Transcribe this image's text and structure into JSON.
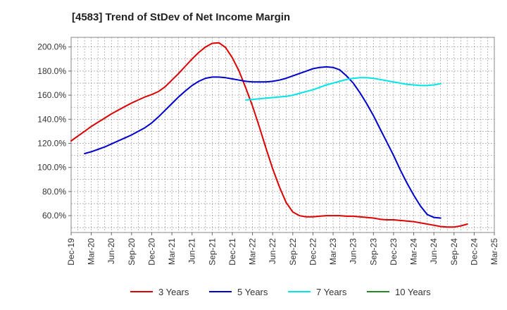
{
  "chart_data": {
    "type": "line",
    "title": "[4583]  Trend of StDev of Net Income Margin",
    "xlabel": "",
    "ylabel": "",
    "y_unit": "%",
    "ylim": [
      46,
      208
    ],
    "y_ticks": [
      60,
      80,
      100,
      120,
      140,
      160,
      180,
      200
    ],
    "y_tick_labels": [
      "60.0%",
      "80.0%",
      "100.0%",
      "120.0%",
      "140.0%",
      "160.0%",
      "180.0%",
      "200.0%"
    ],
    "x_ticks": [
      "Dec-19",
      "Mar-20",
      "Jun-20",
      "Sep-20",
      "Dec-20",
      "Mar-21",
      "Jun-21",
      "Sep-21",
      "Dec-21",
      "Mar-22",
      "Jun-22",
      "Sep-22",
      "Dec-22",
      "Mar-23",
      "Jun-23",
      "Sep-23",
      "Dec-23",
      "Mar-24",
      "Jun-24",
      "Sep-24",
      "Dec-24",
      "Mar-25"
    ],
    "grid": true,
    "legend_position": "bottom",
    "series": [
      {
        "name": "3 Years",
        "color": "#dd0000",
        "points": [
          [
            "Dec-19",
            122
          ],
          [
            "Jan-20",
            126
          ],
          [
            "Feb-20",
            130
          ],
          [
            "Mar-20",
            134
          ],
          [
            "Apr-20",
            137.5
          ],
          [
            "May-20",
            141
          ],
          [
            "Jun-20",
            144.5
          ],
          [
            "Jul-20",
            147.5
          ],
          [
            "Aug-20",
            150.5
          ],
          [
            "Sep-20",
            153.5
          ],
          [
            "Oct-20",
            156
          ],
          [
            "Nov-20",
            158.5
          ],
          [
            "Dec-20",
            160.5
          ],
          [
            "Jan-21",
            163
          ],
          [
            "Feb-21",
            167
          ],
          [
            "Mar-21",
            172.5
          ],
          [
            "Apr-21",
            178
          ],
          [
            "May-21",
            184
          ],
          [
            "Jun-21",
            190
          ],
          [
            "Jul-21",
            195.5
          ],
          [
            "Aug-21",
            200
          ],
          [
            "Sep-21",
            203
          ],
          [
            "Oct-21",
            203.5
          ],
          [
            "Nov-21",
            199.5
          ],
          [
            "Dec-21",
            191
          ],
          [
            "Jan-22",
            180
          ],
          [
            "Feb-22",
            166
          ],
          [
            "Mar-22",
            151
          ],
          [
            "Apr-22",
            134
          ],
          [
            "May-22",
            116
          ],
          [
            "Jun-22",
            99
          ],
          [
            "Jul-22",
            84
          ],
          [
            "Aug-22",
            71
          ],
          [
            "Sep-22",
            63
          ],
          [
            "Oct-22",
            60
          ],
          [
            "Nov-22",
            59
          ],
          [
            "Dec-22",
            59
          ],
          [
            "Jan-23",
            59.5
          ],
          [
            "Feb-23",
            60
          ],
          [
            "Mar-23",
            60
          ],
          [
            "Apr-23",
            60
          ],
          [
            "May-23",
            59.5
          ],
          [
            "Jun-23",
            59.5
          ],
          [
            "Jul-23",
            59
          ],
          [
            "Aug-23",
            58.5
          ],
          [
            "Sep-23",
            58
          ],
          [
            "Oct-23",
            57
          ],
          [
            "Nov-23",
            56.5
          ],
          [
            "Dec-23",
            56.5
          ],
          [
            "Jan-24",
            56
          ],
          [
            "Feb-24",
            55.5
          ],
          [
            "Mar-24",
            55
          ],
          [
            "Apr-24",
            54
          ],
          [
            "May-24",
            53
          ],
          [
            "Jun-24",
            52
          ],
          [
            "Jul-24",
            51
          ],
          [
            "Aug-24",
            50.5
          ],
          [
            "Sep-24",
            50.5
          ],
          [
            "Oct-24",
            51.5
          ],
          [
            "Nov-24",
            53
          ]
        ]
      },
      {
        "name": "5 Years",
        "color": "#0000cc",
        "points": [
          [
            "Feb-20",
            111.5
          ],
          [
            "Mar-20",
            113
          ],
          [
            "Apr-20",
            115
          ],
          [
            "May-20",
            117
          ],
          [
            "Jun-20",
            119.5
          ],
          [
            "Jul-20",
            122
          ],
          [
            "Aug-20",
            124.5
          ],
          [
            "Sep-20",
            127
          ],
          [
            "Oct-20",
            130
          ],
          [
            "Nov-20",
            133
          ],
          [
            "Dec-20",
            137
          ],
          [
            "Jan-21",
            142
          ],
          [
            "Feb-21",
            147.5
          ],
          [
            "Mar-21",
            153
          ],
          [
            "Apr-21",
            158.5
          ],
          [
            "May-21",
            163.5
          ],
          [
            "Jun-21",
            168
          ],
          [
            "Jul-21",
            171.5
          ],
          [
            "Aug-21",
            174
          ],
          [
            "Sep-21",
            175
          ],
          [
            "Oct-21",
            175
          ],
          [
            "Nov-21",
            174.5
          ],
          [
            "Dec-21",
            173.5
          ],
          [
            "Jan-22",
            172.5
          ],
          [
            "Feb-22",
            171.5
          ],
          [
            "Mar-22",
            171
          ],
          [
            "Apr-22",
            171
          ],
          [
            "May-22",
            171
          ],
          [
            "Jun-22",
            171.5
          ],
          [
            "Jul-22",
            172.5
          ],
          [
            "Aug-22",
            174
          ],
          [
            "Sep-22",
            176
          ],
          [
            "Oct-22",
            178
          ],
          [
            "Nov-22",
            180
          ],
          [
            "Dec-22",
            182
          ],
          [
            "Jan-23",
            183
          ],
          [
            "Feb-23",
            183.5
          ],
          [
            "Mar-23",
            183
          ],
          [
            "Apr-23",
            181
          ],
          [
            "May-23",
            176
          ],
          [
            "Jun-23",
            170
          ],
          [
            "Jul-23",
            162
          ],
          [
            "Aug-23",
            153
          ],
          [
            "Sep-23",
            143
          ],
          [
            "Oct-23",
            132
          ],
          [
            "Nov-23",
            121
          ],
          [
            "Dec-23",
            110
          ],
          [
            "Jan-24",
            98
          ],
          [
            "Feb-24",
            87
          ],
          [
            "Mar-24",
            77
          ],
          [
            "Apr-24",
            68
          ],
          [
            "May-24",
            61
          ],
          [
            "Jun-24",
            58.5
          ],
          [
            "Jul-24",
            58
          ]
        ]
      },
      {
        "name": "7 Years",
        "color": "#00e5e5",
        "points": [
          [
            "Feb-22",
            156
          ],
          [
            "Mar-22",
            156.5
          ],
          [
            "Apr-22",
            157
          ],
          [
            "May-22",
            157.5
          ],
          [
            "Jun-22",
            158
          ],
          [
            "Jul-22",
            158.5
          ],
          [
            "Aug-22",
            159
          ],
          [
            "Sep-22",
            160
          ],
          [
            "Oct-22",
            161.5
          ],
          [
            "Nov-22",
            163
          ],
          [
            "Dec-22",
            164.5
          ],
          [
            "Jan-23",
            166.5
          ],
          [
            "Feb-23",
            168.5
          ],
          [
            "Mar-23",
            170
          ],
          [
            "Apr-23",
            171.5
          ],
          [
            "May-23",
            173
          ],
          [
            "Jun-23",
            174
          ],
          [
            "Jul-23",
            174.5
          ],
          [
            "Aug-23",
            174.5
          ],
          [
            "Sep-23",
            174
          ],
          [
            "Oct-23",
            173
          ],
          [
            "Nov-23",
            172
          ],
          [
            "Dec-23",
            171
          ],
          [
            "Jan-24",
            170
          ],
          [
            "Feb-24",
            169
          ],
          [
            "Mar-24",
            168.5
          ],
          [
            "Apr-24",
            168
          ],
          [
            "May-24",
            168
          ],
          [
            "Jun-24",
            168.5
          ],
          [
            "Jul-24",
            169.5
          ]
        ]
      },
      {
        "name": "10 Years",
        "color": "#228b22",
        "points": []
      }
    ]
  }
}
